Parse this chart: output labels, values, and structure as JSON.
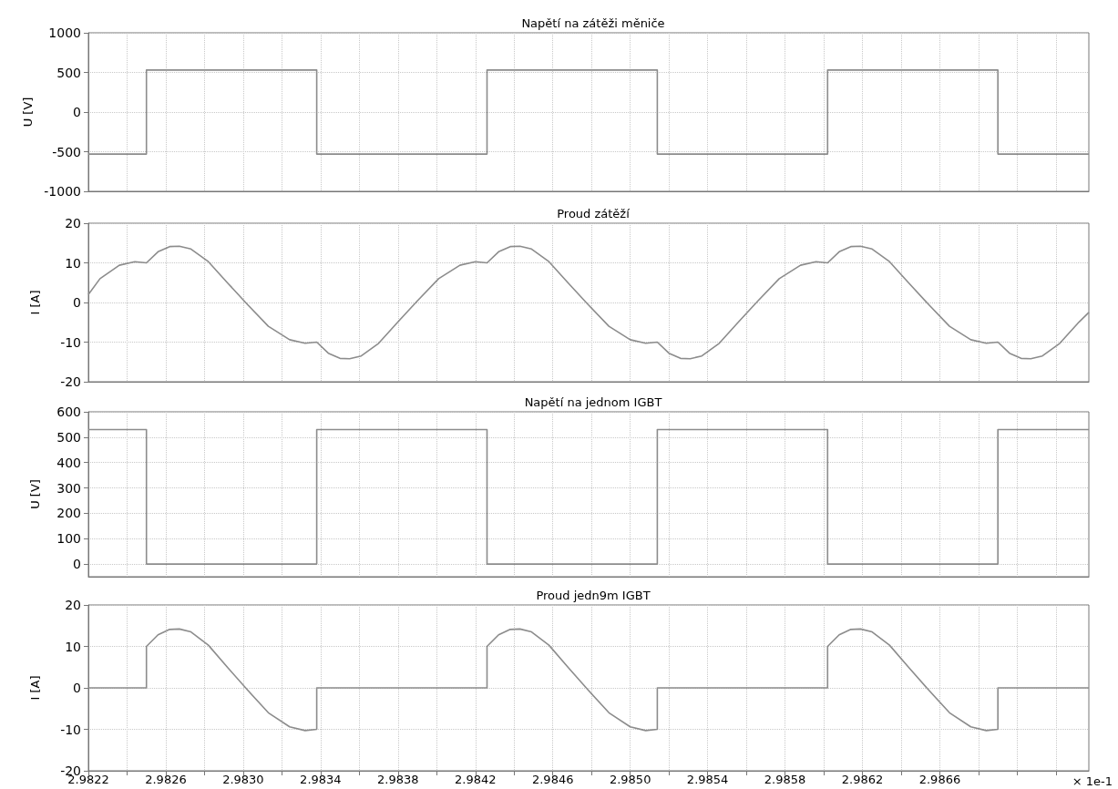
{
  "chart_data": [
    {
      "type": "step",
      "title": "Napětí na zátěži měniče",
      "ylabel": "U [V]",
      "color": "#8c8c8c",
      "marker": "none",
      "grid": true,
      "tick_labels": "y",
      "x": [
        2.9822,
        2.9825,
        2.98338,
        2.98426,
        2.98514,
        2.98602,
        2.9869,
        2.98737
      ],
      "values": [
        -530,
        530,
        -530,
        530,
        -530,
        530,
        -530,
        -530
      ],
      "xlim": [
        2.9822,
        2.98737
      ],
      "xticks": [
        2.9822,
        2.9824,
        2.9826,
        2.9828,
        2.983,
        2.9832,
        2.9834,
        2.9836,
        2.9838,
        2.984,
        2.9842,
        2.9844,
        2.9846,
        2.9848,
        2.985,
        2.9852,
        2.9854,
        2.9856,
        2.9858,
        2.986,
        2.9862,
        2.9864,
        2.9866,
        2.9868,
        2.987,
        2.9872
      ],
      "ylim": [
        -1000,
        1000
      ],
      "yticks": [
        -1000,
        -500,
        0,
        500,
        1000
      ]
    },
    {
      "type": "line",
      "title": "Proud zátěží",
      "ylabel": "I [A]",
      "color": "#8c8c8c",
      "marker": "none",
      "grid": true,
      "tick_labels": "y",
      "x": [
        2.9822,
        2.98226,
        2.98236,
        2.98244,
        2.9825,
        2.98256,
        2.98262,
        2.98267,
        2.98273,
        2.98282,
        2.98292,
        2.98302,
        2.98313,
        2.98324,
        2.98332,
        2.98338,
        2.98344,
        2.9835,
        2.98355,
        2.98361,
        2.9837,
        2.9838,
        2.9839,
        2.98401,
        2.98412,
        2.9842,
        2.98426,
        2.98432,
        2.98438,
        2.98443,
        2.98449,
        2.98458,
        2.98468,
        2.98478,
        2.98489,
        2.985,
        2.98508,
        2.98514,
        2.9852,
        2.98526,
        2.98531,
        2.98537,
        2.98546,
        2.98556,
        2.98566,
        2.98577,
        2.98588,
        2.98596,
        2.98602,
        2.98608,
        2.98614,
        2.98619,
        2.98625,
        2.98634,
        2.98644,
        2.98654,
        2.98665,
        2.98676,
        2.98684,
        2.9869,
        2.98696,
        2.98702,
        2.98707,
        2.98713,
        2.98722,
        2.98732,
        2.98737
      ],
      "values": [
        2,
        6,
        9.4,
        10.3,
        10,
        12.8,
        14.1,
        14.2,
        13.5,
        10.3,
        4.9,
        -0.4,
        -6,
        -9.4,
        -10.3,
        -10,
        -12.8,
        -14.1,
        -14.2,
        -13.5,
        -10.3,
        -4.9,
        0.4,
        6,
        9.4,
        10.3,
        10,
        12.8,
        14.1,
        14.2,
        13.5,
        10.3,
        4.9,
        -0.4,
        -6,
        -9.4,
        -10.3,
        -10,
        -12.8,
        -14.1,
        -14.2,
        -13.5,
        -10.3,
        -4.9,
        0.4,
        6,
        9.4,
        10.3,
        10,
        12.8,
        14.1,
        14.2,
        13.5,
        10.3,
        4.9,
        -0.4,
        -6,
        -9.4,
        -10.3,
        -10,
        -12.8,
        -14.1,
        -14.2,
        -13.5,
        -10.3,
        -4.9,
        -2.5
      ],
      "xlim": [
        2.9822,
        2.98737
      ],
      "xticks": [
        2.9822,
        2.9824,
        2.9826,
        2.9828,
        2.983,
        2.9832,
        2.9834,
        2.9836,
        2.9838,
        2.984,
        2.9842,
        2.9844,
        2.9846,
        2.9848,
        2.985,
        2.9852,
        2.9854,
        2.9856,
        2.9858,
        2.986,
        2.9862,
        2.9864,
        2.9866,
        2.9868,
        2.987,
        2.9872
      ],
      "ylim": [
        -20,
        20
      ],
      "yticks": [
        -20,
        -10,
        0,
        10,
        20
      ]
    },
    {
      "type": "step",
      "title": "Napětí na jednom IGBT",
      "ylabel": "U [V]",
      "color": "#8c8c8c",
      "marker": "none",
      "grid": true,
      "tick_labels": "y",
      "x": [
        2.9822,
        2.9825,
        2.98338,
        2.98426,
        2.98514,
        2.98602,
        2.9869,
        2.98737
      ],
      "values": [
        530,
        0,
        530,
        0,
        530,
        0,
        530,
        530
      ],
      "xlim": [
        2.9822,
        2.98737
      ],
      "xticks": [
        2.9822,
        2.9824,
        2.9826,
        2.9828,
        2.983,
        2.9832,
        2.9834,
        2.9836,
        2.9838,
        2.984,
        2.9842,
        2.9844,
        2.9846,
        2.9848,
        2.985,
        2.9852,
        2.9854,
        2.9856,
        2.9858,
        2.986,
        2.9862,
        2.9864,
        2.9866,
        2.9868,
        2.987,
        2.9872
      ],
      "ylim": [
        -50,
        600
      ],
      "yticks": [
        0,
        100,
        200,
        300,
        400,
        500,
        600
      ]
    },
    {
      "type": "line",
      "title": "Proud jedn9m IGBT",
      "ylabel": "I [A]",
      "color": "#8c8c8c",
      "marker": "none",
      "grid": true,
      "annotations": [
        "× 1e-1"
      ],
      "x": [
        2.9822,
        2.9825,
        2.9825,
        2.98256,
        2.98262,
        2.98267,
        2.98273,
        2.98282,
        2.98292,
        2.98302,
        2.98313,
        2.98324,
        2.98332,
        2.98338,
        2.98338,
        2.98426,
        2.98426,
        2.98432,
        2.98438,
        2.98443,
        2.98449,
        2.98458,
        2.98468,
        2.98478,
        2.98489,
        2.985,
        2.98508,
        2.98514,
        2.98514,
        2.98602,
        2.98602,
        2.98608,
        2.98614,
        2.98619,
        2.98625,
        2.98634,
        2.98644,
        2.98654,
        2.98665,
        2.98676,
        2.98684,
        2.9869,
        2.9869,
        2.98737
      ],
      "values": [
        0,
        0,
        10,
        12.8,
        14.1,
        14.2,
        13.5,
        10.3,
        4.9,
        -0.4,
        -6,
        -9.4,
        -10.3,
        -10,
        0,
        0,
        10,
        12.8,
        14.1,
        14.2,
        13.5,
        10.3,
        4.9,
        -0.4,
        -6,
        -9.4,
        -10.3,
        -10,
        0,
        0,
        10,
        12.8,
        14.1,
        14.2,
        13.5,
        10.3,
        4.9,
        -0.4,
        -6,
        -9.4,
        -10.3,
        -10,
        0,
        0
      ],
      "xlim": [
        2.9822,
        2.98737
      ],
      "xticks": [
        2.9822,
        {
          "value": 2.9824,
          "label": null
        },
        2.9826,
        {
          "value": 2.9828,
          "label": null
        },
        {
          "value": 2.983,
          "label": "2.9830"
        },
        {
          "value": 2.9832,
          "label": null
        },
        2.9834,
        {
          "value": 2.9836,
          "label": null
        },
        2.9838,
        {
          "value": 2.984,
          "label": null
        },
        2.9842,
        {
          "value": 2.9844,
          "label": null
        },
        2.9846,
        {
          "value": 2.9848,
          "label": null
        },
        {
          "value": 2.985,
          "label": "2.9850"
        },
        {
          "value": 2.9852,
          "label": null
        },
        2.9854,
        {
          "value": 2.9856,
          "label": null
        },
        2.9858,
        {
          "value": 2.986,
          "label": null
        },
        2.9862,
        {
          "value": 2.9864,
          "label": null
        },
        2.9866,
        {
          "value": 2.9868,
          "label": null
        },
        {
          "value": 2.987,
          "label": null
        },
        {
          "value": 2.9872,
          "label": null
        }
      ],
      "ylim": [
        -20,
        20
      ],
      "yticks": [
        -20,
        -10,
        0,
        10,
        20
      ]
    }
  ]
}
